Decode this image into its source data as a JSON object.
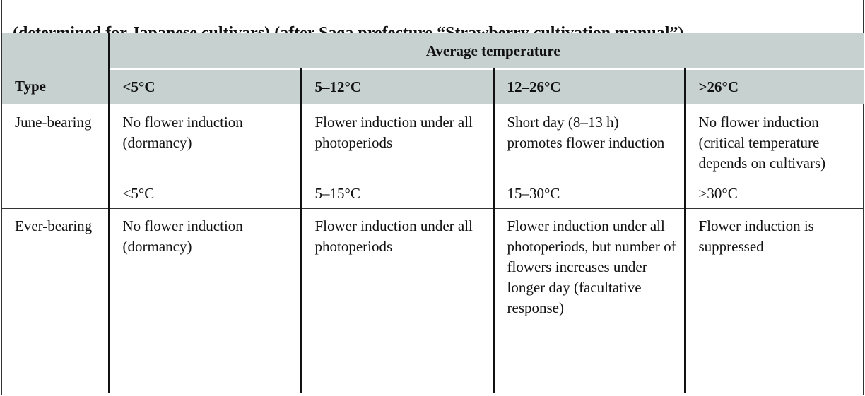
{
  "caption": "(determined for Japanese cultivars) (after Saga prefecture “Strawberry cultivation manual”).",
  "table": {
    "group_header": "Average temperature",
    "columns": [
      "Type",
      "<5°C",
      "5–12°C",
      "12–26°C",
      ">26°C"
    ],
    "rows": [
      {
        "type": "June-bearing",
        "cells": [
          "No flower induction (dormancy)",
          "Flower induction under all photoperiods",
          "Short day (8–13 h) promotes flower induction",
          "No flower induction (critical temperature depends on cultivars)"
        ]
      },
      {
        "cells": [
          "<5°C",
          "5–15°C",
          "15–30°C",
          ">30°C"
        ]
      },
      {
        "type": "Ever-bearing",
        "cells": [
          "No flower induction (dormancy)",
          "Flower induction under all photoperiods",
          "Flower induction under all photoperiods, but number of flowers increases under longer day (facultative response)",
          "Flower induction is suppressed"
        ]
      }
    ]
  }
}
